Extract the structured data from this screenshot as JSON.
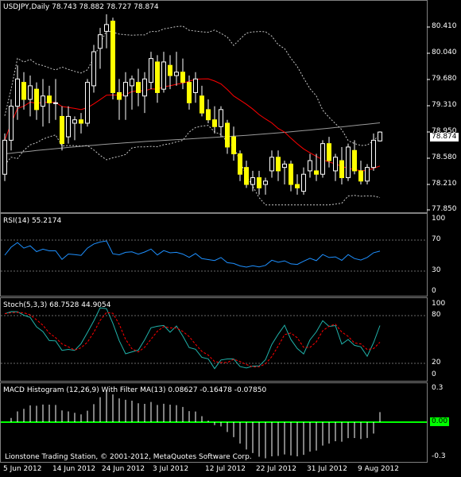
{
  "main": {
    "title": "USDJPY,Daily  78.743 78.882 78.727 78.874",
    "price_labels": [
      "80.410",
      "80.040",
      "79.680",
      "79.310",
      "78.950",
      "78.580",
      "78.210",
      "77.850"
    ],
    "last_price": "78.874",
    "colors": {
      "bull": "#ffff00",
      "bear": "#ffff00",
      "ma": "#ff0000",
      "bands": "#c8c8c8",
      "long_ma": "#9a9a9a",
      "last_tag_bg": "#ffffff"
    }
  },
  "rsi": {
    "title": "RSI(14) 55.2174",
    "levels": [
      "70",
      "30",
      "100",
      "0"
    ],
    "color": "#1e90ff"
  },
  "stoch": {
    "title": "Stoch(5,3,3) 68.7528 44.9054",
    "levels": [
      "100",
      "80",
      "20",
      "0"
    ],
    "main_color": "#20b2aa",
    "signal_color": "#ff0000"
  },
  "macd": {
    "title": "MACD Histogram (12,26,9) With Filter MA(13) 0.08627 -0.16478 -0.07850",
    "levels": [
      "0.3",
      "0.00",
      "-0.3"
    ],
    "zero_color": "#00ff00",
    "hist_color": "#ffffff"
  },
  "footer": {
    "copyright": "Lionstone Trading Station, © 2001-2012, MetaQuotes Software Corp."
  },
  "dates": [
    "5 Jun 2012",
    "14 Jun 2012",
    "24 Jun 2012",
    "3 Jul 2012",
    "12 Jul 2012",
    "22 Jul 2012",
    "31 Jul 2012",
    "9 Aug 2012"
  ],
  "chart_data": {
    "type": "candlestick",
    "symbol": "USDJPY",
    "timeframe": "Daily",
    "ylim": [
      77.75,
      80.6
    ],
    "price_ticks": [
      80.41,
      80.04,
      79.68,
      79.31,
      78.95,
      78.58,
      78.21,
      77.85
    ],
    "x_tick_labels": [
      "5 Jun 2012",
      "14 Jun 2012",
      "24 Jun 2012",
      "3 Jul 2012",
      "12 Jul 2012",
      "22 Jul 2012",
      "31 Jul 2012",
      "9 Aug 2012"
    ],
    "candles": [
      [
        78.25,
        78.85,
        78.15,
        78.75
      ],
      [
        78.75,
        79.35,
        78.6,
        79.25
      ],
      [
        79.25,
        79.85,
        79.05,
        79.65
      ],
      [
        79.6,
        79.75,
        79.2,
        79.35
      ],
      [
        79.35,
        79.7,
        79.1,
        79.55
      ],
      [
        79.5,
        79.6,
        79.05,
        79.2
      ],
      [
        79.25,
        79.65,
        78.95,
        79.4
      ],
      [
        79.4,
        79.55,
        79.0,
        79.3
      ],
      [
        79.3,
        79.65,
        79.05,
        79.3
      ],
      [
        79.1,
        79.25,
        78.6,
        78.7
      ],
      [
        78.8,
        79.25,
        78.7,
        79.1
      ],
      [
        79.0,
        79.1,
        78.75,
        79.05
      ],
      [
        79.05,
        79.15,
        78.85,
        79.0
      ],
      [
        79.0,
        79.65,
        78.95,
        79.6
      ],
      [
        79.55,
        80.15,
        79.45,
        80.05
      ],
      [
        80.1,
        80.4,
        79.8,
        80.3
      ],
      [
        80.35,
        80.6,
        80.1,
        80.45
      ],
      [
        80.5,
        80.55,
        79.35,
        79.45
      ],
      [
        79.45,
        79.65,
        79.05,
        79.35
      ],
      [
        79.4,
        79.75,
        79.05,
        79.6
      ],
      [
        79.55,
        79.7,
        79.2,
        79.65
      ],
      [
        79.6,
        79.8,
        79.25,
        79.45
      ],
      [
        79.4,
        79.75,
        79.15,
        79.65
      ],
      [
        79.6,
        80.05,
        79.5,
        79.95
      ],
      [
        79.9,
        80.0,
        79.3,
        79.45
      ],
      [
        79.5,
        80.05,
        79.45,
        79.9
      ],
      [
        79.85,
        80.0,
        79.5,
        79.7
      ],
      [
        79.7,
        80.05,
        79.55,
        79.75
      ],
      [
        79.75,
        79.95,
        79.5,
        79.6
      ],
      [
        79.6,
        79.7,
        79.2,
        79.3
      ],
      [
        79.45,
        79.75,
        79.3,
        79.65
      ],
      [
        79.4,
        79.55,
        79.1,
        79.15
      ],
      [
        79.2,
        79.35,
        79.0,
        79.05
      ],
      [
        79.05,
        79.25,
        78.85,
        78.95
      ],
      [
        78.95,
        79.25,
        78.8,
        79.2
      ],
      [
        79.0,
        79.05,
        78.55,
        78.65
      ],
      [
        78.8,
        78.95,
        78.45,
        78.55
      ],
      [
        78.55,
        78.6,
        78.15,
        78.25
      ],
      [
        78.35,
        78.45,
        78.05,
        78.1
      ],
      [
        78.1,
        78.3,
        78.0,
        78.2
      ],
      [
        78.2,
        78.3,
        77.95,
        78.05
      ],
      [
        78.1,
        78.2,
        77.95,
        78.15
      ],
      [
        78.3,
        78.6,
        78.2,
        78.5
      ],
      [
        78.5,
        78.6,
        78.15,
        78.3
      ],
      [
        78.35,
        78.45,
        78.1,
        78.4
      ],
      [
        78.4,
        78.45,
        78.0,
        78.1
      ],
      [
        78.1,
        78.25,
        77.95,
        78.05
      ],
      [
        78.0,
        78.35,
        77.95,
        78.25
      ],
      [
        78.3,
        78.55,
        78.2,
        78.45
      ],
      [
        78.3,
        78.55,
        78.15,
        78.25
      ],
      [
        78.25,
        78.75,
        78.2,
        78.7
      ],
      [
        78.7,
        78.8,
        78.35,
        78.45
      ],
      [
        78.3,
        78.55,
        78.15,
        78.5
      ],
      [
        78.45,
        78.65,
        78.1,
        78.2
      ],
      [
        78.2,
        78.7,
        78.15,
        78.65
      ],
      [
        78.6,
        78.75,
        78.25,
        78.3
      ],
      [
        78.3,
        78.45,
        78.1,
        78.15
      ],
      [
        78.15,
        78.4,
        78.1,
        78.35
      ],
      [
        78.35,
        78.85,
        78.3,
        78.75
      ],
      [
        78.74,
        78.88,
        78.73,
        78.87
      ]
    ],
    "rsi_levels": [
      70,
      30
    ],
    "rsi_current": 55.2174,
    "stoch_levels": [
      80,
      20
    ],
    "stoch_main": 68.7528,
    "stoch_signal": 44.9054,
    "macd_hist_current": 0.08627,
    "macd_filter_values": [
      -0.16478,
      -0.0785
    ],
    "macd_ylim": [
      -0.3,
      0.3
    ]
  }
}
